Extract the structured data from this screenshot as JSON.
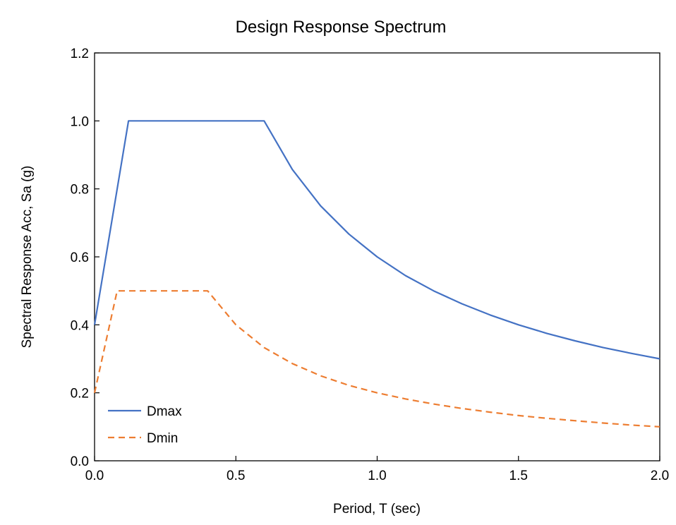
{
  "chart_data": {
    "type": "line",
    "title": "Design Response Spectrum",
    "xlabel": "Period, T (sec)",
    "ylabel": "Spectral Response Acc, Sa (g)",
    "xlim": [
      0,
      2.0
    ],
    "ylim": [
      0,
      1.2
    ],
    "x_ticks": [
      "0.0",
      "0.5",
      "1.0",
      "1.5",
      "2.0"
    ],
    "x_tick_values": [
      0,
      0.5,
      1.0,
      1.5,
      2.0
    ],
    "y_ticks": [
      "0.0",
      "0.2",
      "0.4",
      "0.6",
      "0.8",
      "1.0",
      "1.2"
    ],
    "y_tick_values": [
      0,
      0.2,
      0.4,
      0.6,
      0.8,
      1.0,
      1.2
    ],
    "grid": false,
    "legend_position": "bottom-left",
    "series": [
      {
        "name": "Dmax",
        "color": "#4472C4",
        "style": "solid",
        "points": [
          [
            0,
            0.4
          ],
          [
            0.12,
            1.0
          ],
          [
            0.6,
            1.0
          ],
          [
            0.7,
            0.857
          ],
          [
            0.8,
            0.75
          ],
          [
            0.9,
            0.667
          ],
          [
            1.0,
            0.6
          ],
          [
            1.1,
            0.545
          ],
          [
            1.2,
            0.5
          ],
          [
            1.3,
            0.462
          ],
          [
            1.4,
            0.429
          ],
          [
            1.5,
            0.4
          ],
          [
            1.6,
            0.375
          ],
          [
            1.7,
            0.353
          ],
          [
            1.8,
            0.333
          ],
          [
            1.9,
            0.316
          ],
          [
            2.0,
            0.3
          ]
        ]
      },
      {
        "name": "Dmin",
        "color": "#ED7D31",
        "style": "dashed",
        "points": [
          [
            0,
            0.2
          ],
          [
            0.08,
            0.5
          ],
          [
            0.4,
            0.5
          ],
          [
            0.5,
            0.4
          ],
          [
            0.6,
            0.333
          ],
          [
            0.7,
            0.286
          ],
          [
            0.8,
            0.25
          ],
          [
            0.9,
            0.222
          ],
          [
            1.0,
            0.2
          ],
          [
            1.1,
            0.182
          ],
          [
            1.2,
            0.167
          ],
          [
            1.3,
            0.154
          ],
          [
            1.4,
            0.143
          ],
          [
            1.5,
            0.133
          ],
          [
            1.6,
            0.125
          ],
          [
            1.7,
            0.118
          ],
          [
            1.8,
            0.111
          ],
          [
            1.9,
            0.105
          ],
          [
            2.0,
            0.1
          ]
        ]
      }
    ]
  }
}
